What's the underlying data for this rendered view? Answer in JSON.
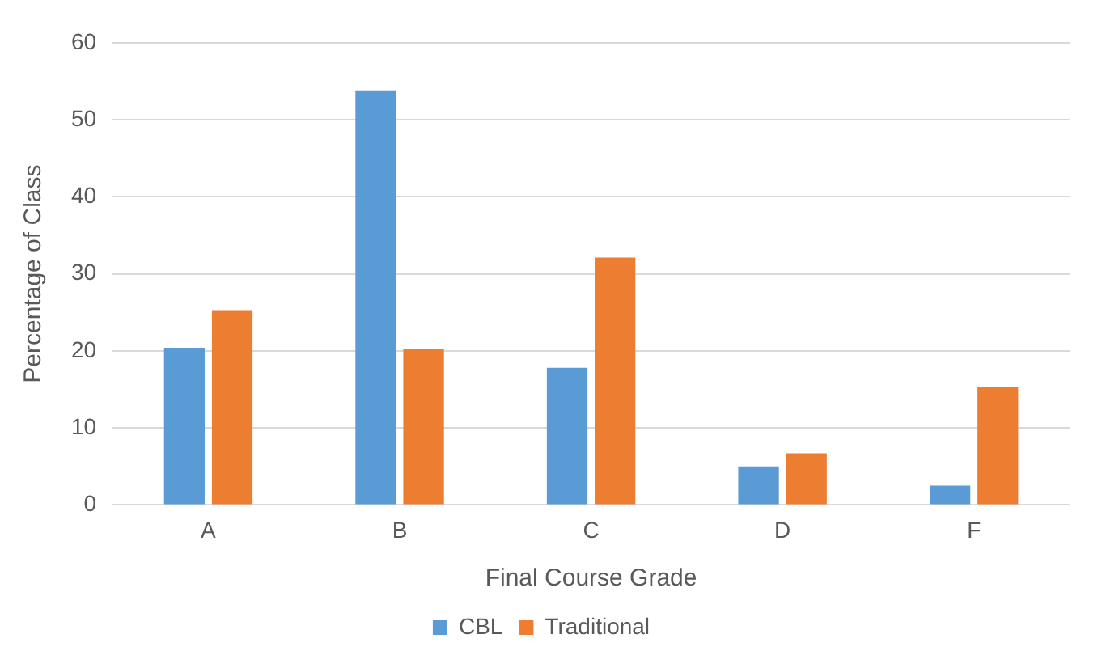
{
  "chart_data": {
    "type": "bar",
    "xlabel": "Final Course Grade",
    "ylabel": "Percentage of Class",
    "categories": [
      "A",
      "B",
      "C",
      "D",
      "F"
    ],
    "series": [
      {
        "name": "CBL",
        "color": "#5b9bd5",
        "values": [
          20.4,
          53.8,
          17.8,
          5.0,
          2.5
        ]
      },
      {
        "name": "Traditional",
        "color": "#ed7d31",
        "values": [
          25.3,
          20.2,
          32.1,
          6.7,
          15.3
        ]
      }
    ],
    "ylim": [
      0,
      60
    ],
    "yticks": [
      0,
      10,
      20,
      30,
      40,
      50,
      60
    ],
    "grid": "y",
    "legend": "bottom"
  }
}
